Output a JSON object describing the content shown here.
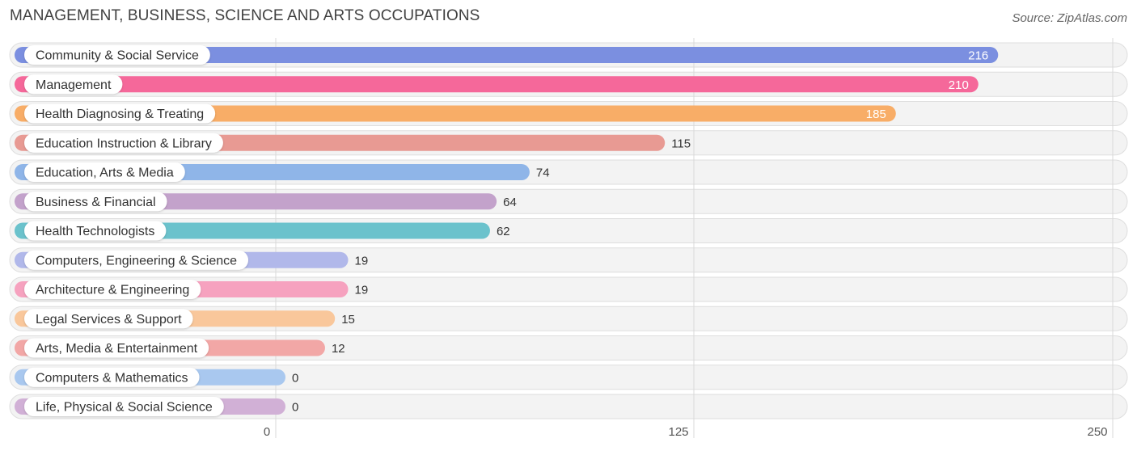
{
  "header": {
    "title": "MANAGEMENT, BUSINESS, SCIENCE AND ARTS OCCUPATIONS",
    "source": "Source: ZipAtlas.com"
  },
  "chart_data": {
    "type": "bar",
    "orientation": "horizontal",
    "title": "MANAGEMENT, BUSINESS, SCIENCE AND ARTS OCCUPATIONS",
    "xlim": [
      0,
      250
    ],
    "ticks": [
      0,
      125,
      250
    ],
    "grid": true,
    "categories": [
      "Community & Social Service",
      "Management",
      "Health Diagnosing & Treating",
      "Education Instruction & Library",
      "Education, Arts & Media",
      "Business & Financial",
      "Health Technologists",
      "Computers, Engineering & Science",
      "Architecture & Engineering",
      "Legal Services & Support",
      "Arts, Media & Entertainment",
      "Computers & Mathematics",
      "Life, Physical & Social Science"
    ],
    "values": [
      216,
      210,
      185,
      115,
      74,
      64,
      62,
      19,
      19,
      15,
      12,
      0,
      0
    ],
    "colors": [
      "#7b8fe0",
      "#f5689a",
      "#f8ad67",
      "#e89a93",
      "#8fb5e8",
      "#c3a2cb",
      "#6bc2cc",
      "#b1b8ea",
      "#f6a2bf",
      "#f9c79b",
      "#f2a7a6",
      "#a9c8ef",
      "#d1b0d6"
    ]
  }
}
